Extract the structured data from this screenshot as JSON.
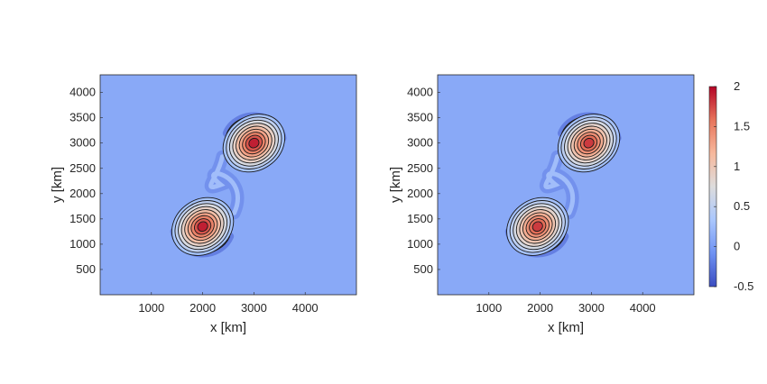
{
  "chart_data": [
    {
      "type": "heatmap",
      "title": "",
      "xlabel": "x [km]",
      "ylabel": "y [km]",
      "xlim": [
        0,
        5000
      ],
      "ylim": [
        0,
        4350
      ],
      "xticks": [
        "1000",
        "2000",
        "3000",
        "4000"
      ],
      "yticks": [
        "500",
        "1000",
        "1500",
        "2000",
        "2500",
        "3000",
        "3500",
        "4000"
      ],
      "vortices": [
        {
          "x": 2000,
          "y": 1350,
          "peak": 1.9
        },
        {
          "x": 3000,
          "y": 3000,
          "peak": 1.9
        }
      ],
      "background": 0.1,
      "contours": true
    },
    {
      "type": "heatmap",
      "title": "",
      "xlabel": "x [km]",
      "ylabel": "y [km]",
      "xlim": [
        0,
        5000
      ],
      "ylim": [
        0,
        4350
      ],
      "xticks": [
        "1000",
        "2000",
        "3000",
        "4000"
      ],
      "yticks": [
        "500",
        "1000",
        "1500",
        "2000",
        "2500",
        "3000",
        "3500",
        "4000"
      ],
      "vortices": [
        {
          "x": 1950,
          "y": 1350,
          "peak": 1.8
        },
        {
          "x": 2950,
          "y": 3000,
          "peak": 1.8
        }
      ],
      "background": 0.1,
      "contours": true
    }
  ],
  "colorbar": {
    "min": -0.5,
    "max": 2,
    "ticks": [
      "2",
      "1.5",
      "1",
      "0.5",
      "0",
      "-0.5"
    ],
    "colors": [
      "#3b4cc0",
      "#6f92f3",
      "#aac7fd",
      "#dddcdc",
      "#f7b89c",
      "#e7745b",
      "#b40426"
    ]
  }
}
